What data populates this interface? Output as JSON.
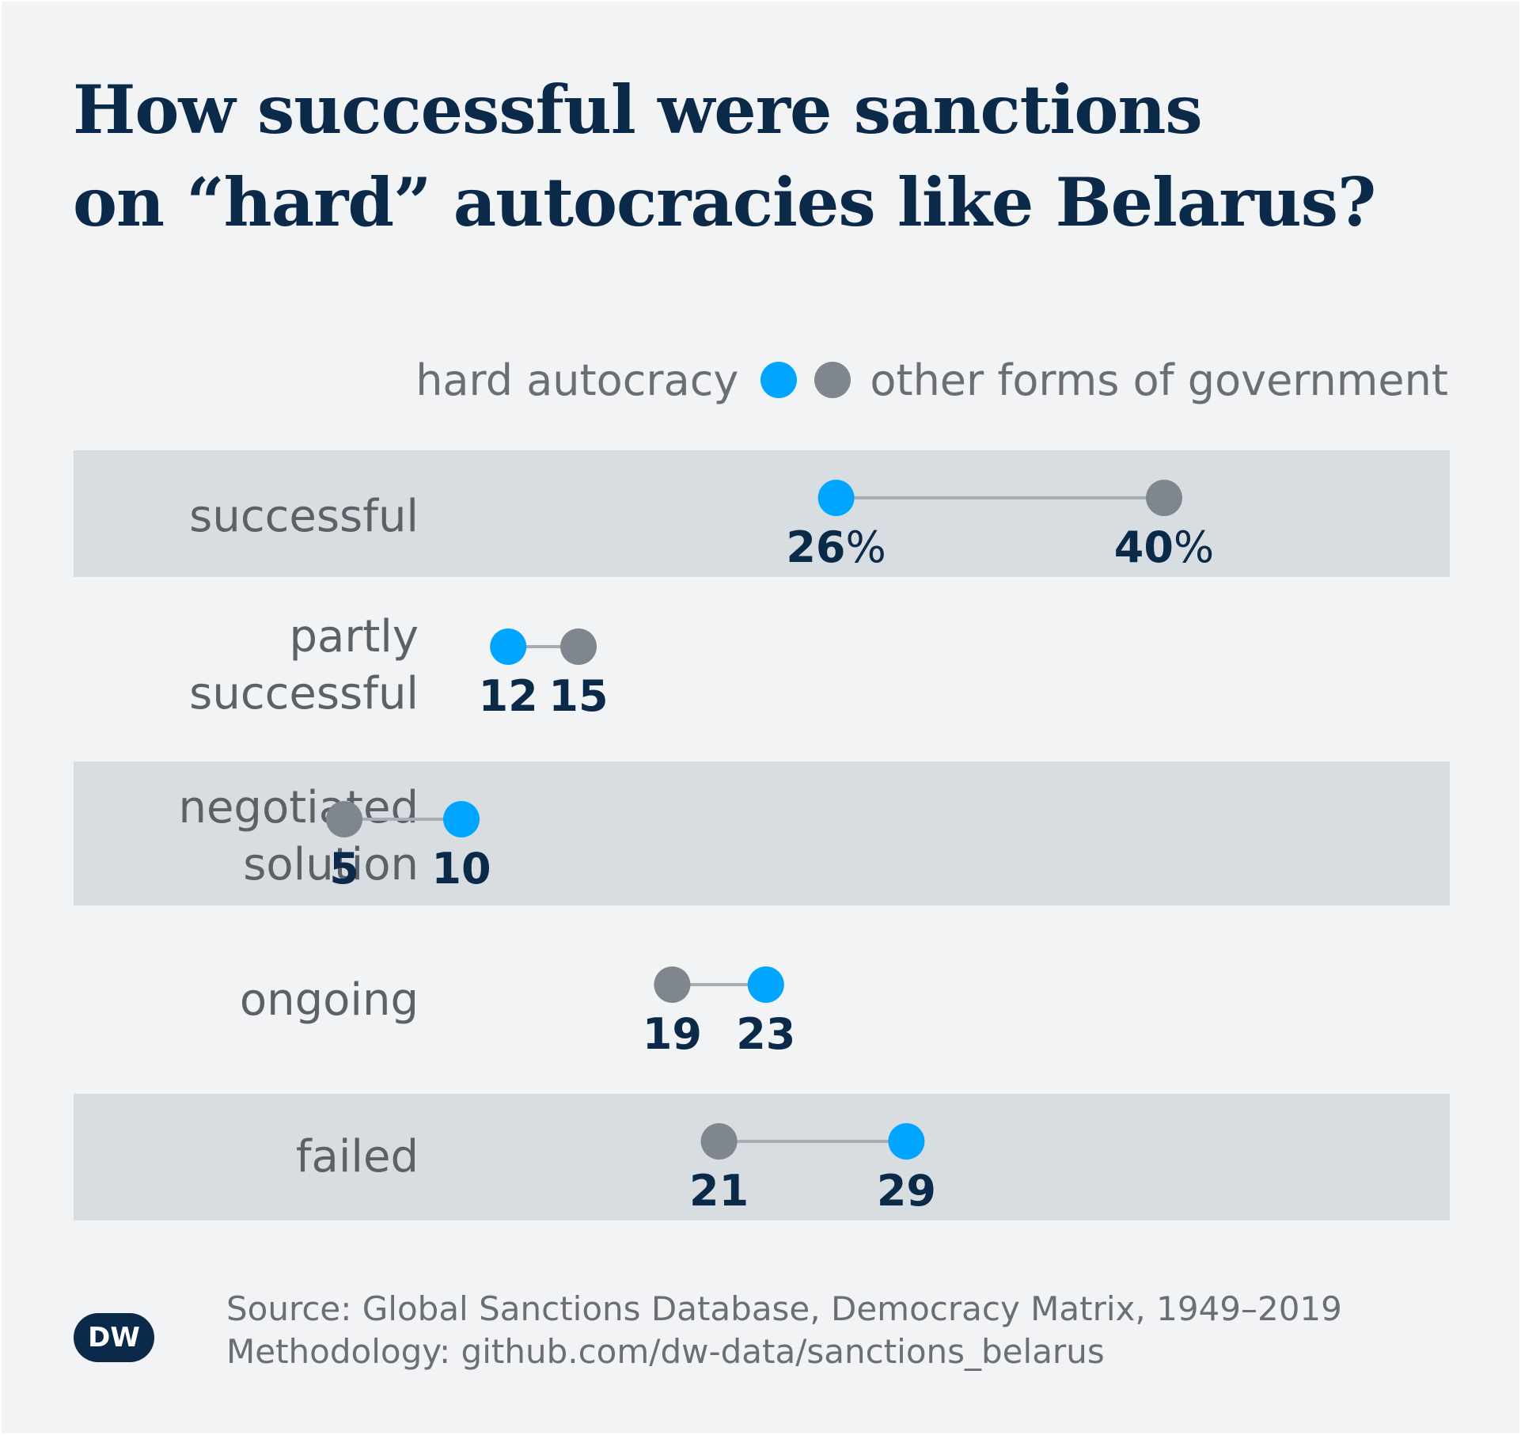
{
  "title_lines": [
    "How successful were sanctions",
    "on “hard” autocracies like Belarus?"
  ],
  "legend": {
    "hard_autocracy": "hard autocracy",
    "other": "other forms of government"
  },
  "colors": {
    "hard_autocracy": "#00a5ff",
    "other": "#7f868e",
    "connector": "#a6adb4",
    "value_text": "#0b2a4a",
    "band": "#d8dde2",
    "background": "#f1f3f5"
  },
  "chart_data": {
    "type": "dumbbell",
    "unit": "%",
    "categories": [
      "successful",
      "partly\nsuccessful",
      "negotiated\nsolution",
      "ongoing",
      "failed"
    ],
    "series": [
      {
        "name": "hard autocracy",
        "values": [
          26,
          12,
          10,
          23,
          29
        ]
      },
      {
        "name": "other forms of government",
        "values": [
          40,
          15,
          5,
          19,
          21
        ]
      }
    ]
  },
  "source_lines": [
    "Source: Global Sanctions Database, Democracy Matrix, 1949–2019",
    "Methodology: github.com/dw-data/sanctions_belarus"
  ],
  "logo_text": "DW"
}
